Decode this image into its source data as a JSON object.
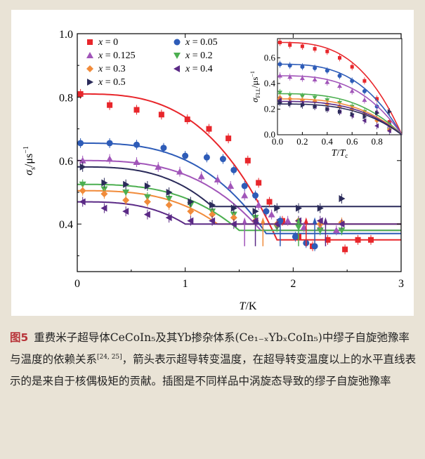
{
  "caption": {
    "label": "图5",
    "text": "重费米子超导体CeCoIn₅及其Yb掺杂体系(Ce₁₋ₓYbₓCoIn₅)中缪子自旋弛豫率与温度的依赖关系",
    "refs": "[24, 25]",
    "text2": "，箭头表示超导转变温度，在超导转变温度以上的水平直线表示的是来自于核偶极矩的贡献。插图是不同样品中涡旋态导致的缪子自旋弛豫率"
  },
  "chart_data": [
    {
      "type": "scatter",
      "xlabel": "T/K",
      "ylabel": "σs/μs⁻¹",
      "xlim": [
        0,
        3
      ],
      "ylim": [
        0.25,
        1.0
      ],
      "xticks": [
        "0",
        "1",
        "2",
        "3"
      ],
      "yticks": [
        "0.4",
        "0.6",
        "0.8",
        "1.0"
      ],
      "legend_position": "top-left",
      "series": [
        {
          "name": "x = 0",
          "color": "#e8262b",
          "marker": "square",
          "tc": 1.85,
          "floor": 0.35,
          "x": [
            0.03,
            0.3,
            0.55,
            0.78,
            1.02,
            1.22,
            1.4,
            1.58,
            1.68,
            1.78,
            1.9,
            2.05,
            2.18,
            2.32,
            2.48,
            2.6,
            2.72
          ],
          "y": [
            0.81,
            0.775,
            0.76,
            0.745,
            0.73,
            0.7,
            0.67,
            0.6,
            0.53,
            0.47,
            0.41,
            0.36,
            0.33,
            0.35,
            0.32,
            0.35,
            0.35
          ]
        },
        {
          "name": "x = 0.05",
          "color": "#2e5cb8",
          "marker": "circle",
          "tc": 1.75,
          "floor": 0.37,
          "x": [
            0.03,
            0.3,
            0.55,
            0.8,
            1.0,
            1.2,
            1.35,
            1.45,
            1.55,
            1.65,
            1.75,
            1.88,
            2.02,
            2.12,
            2.2
          ],
          "y": [
            0.655,
            0.655,
            0.65,
            0.64,
            0.615,
            0.61,
            0.605,
            0.57,
            0.52,
            0.49,
            0.44,
            0.41,
            0.36,
            0.34,
            0.33
          ]
        },
        {
          "name": "x = 0.125",
          "color": "#a155b9",
          "marker": "triangle-up",
          "tc": 1.7,
          "floor": 0.38,
          "x": [
            0.05,
            0.3,
            0.55,
            0.75,
            0.95,
            1.15,
            1.3,
            1.42,
            1.55,
            1.68,
            1.8,
            1.95,
            2.1,
            2.25,
            2.4
          ],
          "y": [
            0.6,
            0.605,
            0.595,
            0.58,
            0.565,
            0.55,
            0.54,
            0.52,
            0.49,
            0.46,
            0.43,
            0.41,
            0.39,
            0.39,
            0.38
          ]
        },
        {
          "name": "x = 0.2",
          "color": "#4caf50",
          "marker": "triangle-down",
          "tc": 1.5,
          "floor": 0.38,
          "x": [
            0.05,
            0.25,
            0.45,
            0.65,
            0.85,
            1.05,
            1.25,
            1.45,
            1.65,
            1.85,
            2.05,
            2.25,
            2.45
          ],
          "y": [
            0.525,
            0.51,
            0.5,
            0.485,
            0.48,
            0.46,
            0.44,
            0.43,
            0.42,
            0.39,
            0.39,
            0.38,
            0.38
          ]
        },
        {
          "name": "x = 0.3",
          "color": "#f18b3a",
          "marker": "diamond",
          "tc": 1.3,
          "floor": 0.4,
          "x": [
            0.05,
            0.25,
            0.45,
            0.65,
            0.85,
            1.05,
            1.25,
            1.45,
            1.65,
            1.85,
            2.05,
            2.25,
            2.45
          ],
          "y": [
            0.505,
            0.495,
            0.475,
            0.47,
            0.46,
            0.44,
            0.43,
            0.42,
            0.41,
            0.4,
            0.41,
            0.4,
            0.405
          ]
        },
        {
          "name": "x = 0.4",
          "color": "#5b2a86",
          "marker": "triangle-left",
          "tc": 1.0,
          "floor": 0.4,
          "x": [
            0.05,
            0.25,
            0.45,
            0.65,
            0.85,
            1.05,
            1.25,
            1.45,
            1.65,
            1.85,
            2.05,
            2.25,
            2.45
          ],
          "y": [
            0.47,
            0.45,
            0.44,
            0.43,
            0.42,
            0.41,
            0.41,
            0.4,
            0.41,
            0.4,
            0.41,
            0.41,
            0.4
          ]
        },
        {
          "name": "x = 0.5",
          "color": "#2b2b5a",
          "marker": "triangle-right",
          "tc": 1.25,
          "floor": 0.455,
          "x": [
            0.05,
            0.25,
            0.45,
            0.65,
            0.85,
            1.05,
            1.25,
            1.45,
            1.65,
            1.85,
            2.05,
            2.25,
            2.45
          ],
          "y": [
            0.58,
            0.53,
            0.525,
            0.52,
            0.5,
            0.47,
            0.46,
            0.45,
            0.44,
            0.45,
            0.45,
            0.45,
            0.48
          ]
        }
      ],
      "arrows_x": [
        1.55,
        1.65,
        1.72,
        1.88,
        2.05,
        2.12,
        2.2,
        2.3
      ]
    },
    {
      "type": "scatter",
      "xlabel": "T/Tc",
      "ylabel": "σFLL/μs⁻¹",
      "xlim": [
        0,
        1.0
      ],
      "ylim": [
        0,
        0.75
      ],
      "xticks": [
        "0.0",
        "0.2",
        "0.4",
        "0.6",
        "0.8"
      ],
      "yticks": [
        "0.0",
        "0.2",
        "0.4",
        "0.6"
      ],
      "series": [
        {
          "name": "x = 0",
          "y0": 0.72,
          "x": [
            0.02,
            0.1,
            0.2,
            0.3,
            0.4,
            0.5,
            0.6,
            0.7,
            0.8,
            0.9
          ],
          "y": [
            0.72,
            0.7,
            0.69,
            0.67,
            0.65,
            0.6,
            0.53,
            0.42,
            0.28,
            0.1
          ]
        },
        {
          "name": "x = 0.05",
          "y0": 0.55,
          "x": [
            0.02,
            0.1,
            0.2,
            0.3,
            0.4,
            0.5,
            0.6,
            0.7,
            0.8,
            0.9
          ],
          "y": [
            0.55,
            0.54,
            0.53,
            0.52,
            0.5,
            0.46,
            0.42,
            0.34,
            0.22,
            0.08
          ]
        },
        {
          "name": "x = 0.125",
          "y0": 0.46,
          "x": [
            0.02,
            0.1,
            0.2,
            0.3,
            0.4,
            0.5,
            0.6,
            0.7,
            0.8,
            0.9
          ],
          "y": [
            0.46,
            0.45,
            0.44,
            0.43,
            0.41,
            0.38,
            0.34,
            0.27,
            0.18,
            0.07
          ]
        },
        {
          "name": "x = 0.2",
          "y0": 0.32,
          "x": [
            0.02,
            0.1,
            0.2,
            0.3,
            0.4,
            0.5,
            0.6,
            0.7,
            0.8,
            0.9
          ],
          "y": [
            0.33,
            0.31,
            0.3,
            0.29,
            0.27,
            0.25,
            0.22,
            0.18,
            0.12,
            0.04
          ]
        },
        {
          "name": "x = 0.3",
          "y0": 0.28,
          "x": [
            0.02,
            0.1,
            0.2,
            0.3,
            0.4,
            0.5,
            0.6,
            0.7,
            0.8,
            0.9
          ],
          "y": [
            0.29,
            0.28,
            0.27,
            0.26,
            0.24,
            0.22,
            0.2,
            0.16,
            0.11,
            0.04
          ]
        },
        {
          "name": "x = 0.4",
          "y0": 0.26,
          "x": [
            0.02,
            0.1,
            0.2,
            0.3,
            0.4,
            0.5,
            0.6,
            0.7,
            0.8,
            0.9
          ],
          "y": [
            0.27,
            0.25,
            0.24,
            0.22,
            0.2,
            0.18,
            0.15,
            0.11,
            0.07,
            0.03
          ]
        },
        {
          "name": "x = 0.5",
          "y0": 0.24,
          "x": [
            0.02,
            0.1,
            0.2,
            0.3,
            0.4,
            0.5,
            0.6,
            0.7,
            0.8,
            0.9
          ],
          "y": [
            0.25,
            0.24,
            0.23,
            0.22,
            0.2,
            0.18,
            0.16,
            0.14,
            0.17,
            0.18
          ]
        }
      ]
    }
  ]
}
